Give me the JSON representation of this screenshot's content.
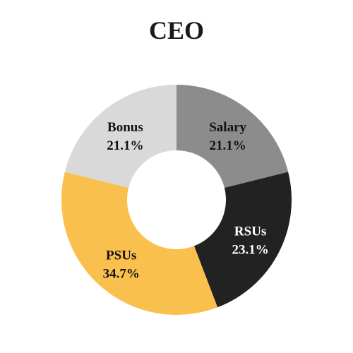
{
  "chart_data": {
    "type": "pie",
    "title": "CEO",
    "donut": true,
    "slices": [
      {
        "label": "Salary",
        "value": 21.1,
        "value_label": "21.1%",
        "color": "#8c8c8c",
        "text_color": "#111111"
      },
      {
        "label": "RSUs",
        "value": 23.1,
        "value_label": "23.1%",
        "color": "#222222",
        "text_color": "#ffffff"
      },
      {
        "label": "PSUs",
        "value": 34.7,
        "value_label": "34.7%",
        "color": "#f9c04e",
        "text_color": "#111111"
      },
      {
        "label": "Bonus",
        "value": 21.1,
        "value_label": "21.1%",
        "color": "#d9d9d9",
        "text_color": "#111111"
      }
    ]
  }
}
